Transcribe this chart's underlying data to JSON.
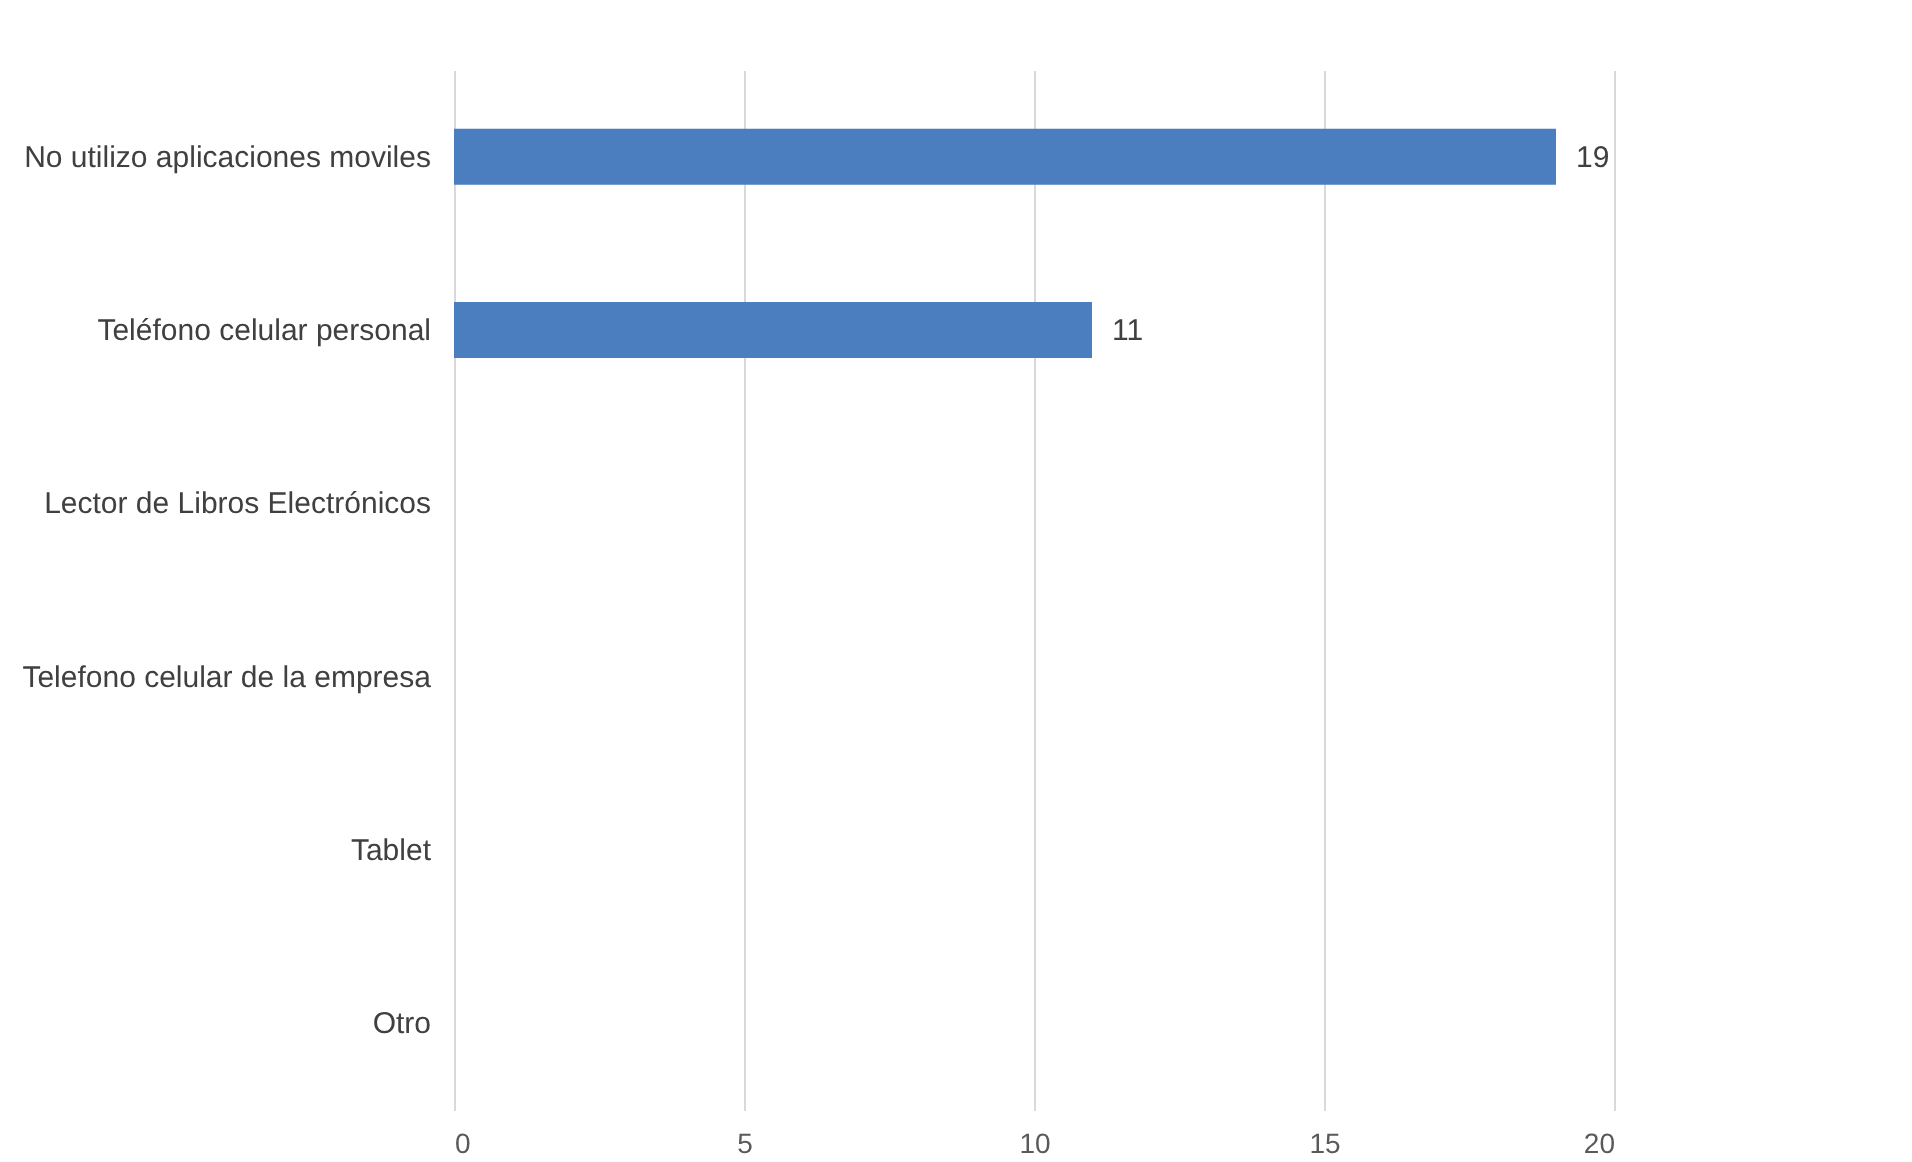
{
  "chart_data": {
    "type": "bar",
    "orientation": "horizontal",
    "categories": [
      "No utilizo aplicaciones moviles",
      "Teléfono celular personal",
      "Lector de Libros Electrónicos",
      "Telefono celular de la empresa",
      "Tablet",
      "Otro"
    ],
    "values": [
      19,
      11,
      0,
      0,
      0,
      0
    ],
    "value_labels": [
      "19",
      "11",
      null,
      null,
      null,
      null
    ],
    "color": "#4a7ebf",
    "xlim": [
      0,
      20
    ],
    "xticks": [
      0,
      5,
      10,
      15,
      20
    ],
    "grid": "x"
  }
}
